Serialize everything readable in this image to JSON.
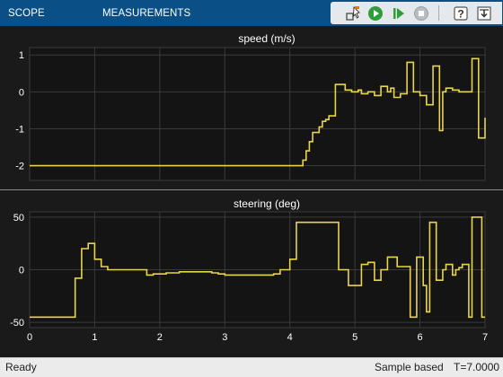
{
  "toolbar": {
    "tabs": [
      {
        "label": "SCOPE"
      },
      {
        "label": "MEASUREMENTS"
      }
    ],
    "buttons": [
      {
        "name": "highlight-block-icon"
      },
      {
        "name": "run-icon"
      },
      {
        "name": "step-forward-icon"
      },
      {
        "name": "stop-icon"
      },
      {
        "name": "help-icon"
      },
      {
        "name": "dock-icon"
      }
    ]
  },
  "colors": {
    "toolbar_bg": "#0b4f87",
    "plot_bg": "#141414",
    "signal": "#e8d44d",
    "grid": "#3a3a3a",
    "axis_text": "#ffffff"
  },
  "chart_data": [
    {
      "type": "line",
      "title": "speed (m/s)",
      "xlabel": "",
      "ylabel": "",
      "xlim": [
        0,
        7
      ],
      "ylim": [
        -2.4,
        1.2
      ],
      "xticks": [
        0,
        1,
        2,
        3,
        4,
        5,
        6,
        7
      ],
      "yticks": [
        1,
        0,
        -1,
        -2
      ],
      "ytick_labels": [
        "1",
        "0",
        "-1",
        "-2"
      ],
      "grid": true,
      "style": "stairs",
      "series": [
        {
          "x": [
            0,
            4.2,
            4.25,
            4.3,
            4.35,
            4.45,
            4.5,
            4.55,
            4.6,
            4.7,
            4.8,
            4.85,
            4.95,
            5.05,
            5.1,
            5.2,
            5.3,
            5.4,
            5.5,
            5.55,
            5.6,
            5.7,
            5.8,
            5.9,
            6.0,
            6.1,
            6.2,
            6.3,
            6.35,
            6.4,
            6.5,
            6.6,
            6.8,
            6.9,
            6.95,
            7.0
          ],
          "y": [
            -2.0,
            -1.85,
            -1.6,
            -1.35,
            -1.1,
            -0.95,
            -0.8,
            -0.75,
            -0.65,
            0.2,
            0.2,
            0.05,
            0.0,
            0.05,
            -0.05,
            0.0,
            -0.1,
            0.15,
            0.0,
            0.1,
            -0.15,
            -0.05,
            0.8,
            0.0,
            -0.1,
            -0.35,
            0.7,
            -1.05,
            0.0,
            0.1,
            0.05,
            0.0,
            0.9,
            -1.25,
            -1.25,
            -0.7
          ]
        }
      ]
    },
    {
      "type": "line",
      "title": "steering (deg)",
      "xlabel": "",
      "ylabel": "",
      "xlim": [
        0,
        7
      ],
      "ylim": [
        -55,
        55
      ],
      "xticks": [
        0,
        1,
        2,
        3,
        4,
        5,
        6,
        7
      ],
      "xtick_labels": [
        "0",
        "1",
        "2",
        "3",
        "4",
        "5",
        "6",
        "7"
      ],
      "yticks": [
        50,
        0,
        -50
      ],
      "ytick_labels": [
        "50",
        "0",
        "-50"
      ],
      "grid": true,
      "style": "stairs",
      "series": [
        {
          "x": [
            0,
            0.7,
            0.8,
            0.9,
            1.0,
            1.1,
            1.2,
            1.8,
            1.9,
            2.1,
            2.3,
            2.8,
            2.9,
            3.0,
            3.1,
            3.2,
            3.3,
            3.5,
            3.65,
            3.75,
            3.85,
            4.0,
            4.1,
            4.75,
            4.9,
            5.0,
            5.1,
            5.2,
            5.3,
            5.4,
            5.5,
            5.65,
            5.75,
            5.85,
            5.95,
            6.05,
            6.1,
            6.15,
            6.25,
            6.35,
            6.4,
            6.5,
            6.55,
            6.6,
            6.65,
            6.75,
            6.8,
            6.95,
            7.0
          ],
          "y": [
            -45,
            -8,
            20,
            25,
            10,
            3,
            0,
            -5,
            -4,
            -3,
            -2,
            -3,
            -4,
            -5,
            -5,
            -5,
            -5,
            -5,
            -5,
            -4,
            0,
            10,
            45,
            0,
            -15,
            -15,
            5,
            7,
            -10,
            0,
            12,
            3,
            3,
            -45,
            12,
            -15,
            -40,
            45,
            -10,
            0,
            5,
            -5,
            0,
            2,
            5,
            -45,
            50,
            -45,
            -45
          ]
        }
      ]
    }
  ],
  "status": {
    "left": "Ready",
    "mode": "Sample based",
    "time": "T=7.0000"
  }
}
